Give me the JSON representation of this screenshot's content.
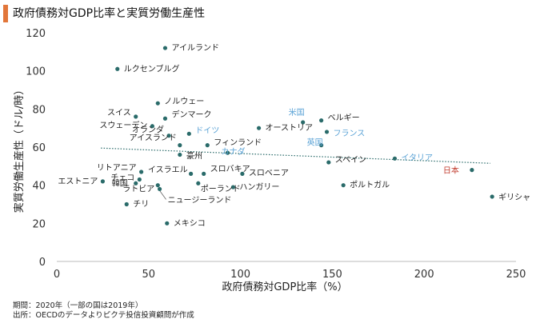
{
  "header": {
    "title": "政府債務対GDP比率と実質労働生産性"
  },
  "chart_data": {
    "type": "scatter",
    "title": "政府債務対GDP比率と実質労働生産性",
    "xlabel": "政府債務対GDP比率（%）",
    "ylabel": "実質労働生産性（ドル/時）",
    "xlim": [
      0,
      250
    ],
    "ylim": [
      0,
      120
    ],
    "xticks": [
      0,
      50,
      100,
      150,
      200,
      250
    ],
    "yticks": [
      0,
      20,
      40,
      60,
      80,
      100,
      120
    ],
    "grid": false,
    "trendline": {
      "style": "dotted",
      "points": [
        [
          24,
          59.5
        ],
        [
          236,
          51.5
        ]
      ]
    },
    "colors": {
      "point": "#2a6b6a",
      "label_default": "#222222",
      "label_highlight": "#5ba3d6",
      "label_japan": "#c0392b",
      "trend": "#2a6b6a"
    },
    "points": [
      {
        "label": "アイルランド",
        "x": 59,
        "y": 112,
        "color": "default"
      },
      {
        "label": "ルクセンブルグ",
        "x": 33,
        "y": 101,
        "color": "default"
      },
      {
        "label": "ノルウェー",
        "x": 55,
        "y": 83,
        "color": "default"
      },
      {
        "label": "スイス",
        "x": 43,
        "y": 76,
        "color": "default"
      },
      {
        "label": "デンマーク",
        "x": 59,
        "y": 75,
        "color": "default"
      },
      {
        "label": "スウェーデン",
        "x": 52,
        "y": 71,
        "color": "default"
      },
      {
        "label": "オランダ",
        "x": 61,
        "y": 66,
        "color": "default"
      },
      {
        "label": "ドイツ",
        "x": 72,
        "y": 67,
        "color": "highlight"
      },
      {
        "label": "オーストリア",
        "x": 110,
        "y": 70,
        "color": "default"
      },
      {
        "label": "米国",
        "x": 134,
        "y": 73,
        "color": "highlight"
      },
      {
        "label": "ベルギー",
        "x": 144,
        "y": 74,
        "color": "default"
      },
      {
        "label": "フランス",
        "x": 147,
        "y": 68,
        "color": "highlight"
      },
      {
        "label": "英国",
        "x": 144,
        "y": 61,
        "color": "highlight"
      },
      {
        "label": "アイスランド",
        "x": 67,
        "y": 61,
        "color": "default"
      },
      {
        "label": "フィンランド",
        "x": 82,
        "y": 61,
        "color": "default"
      },
      {
        "label": "豪州",
        "x": 67,
        "y": 56,
        "color": "default"
      },
      {
        "label": "カナダ",
        "x": 93,
        "y": 57,
        "color": "highlight"
      },
      {
        "label": "イタリア",
        "x": 184,
        "y": 54,
        "color": "highlight"
      },
      {
        "label": "スペイン",
        "x": 148,
        "y": 52,
        "color": "default"
      },
      {
        "label": "日本",
        "x": 226,
        "y": 48,
        "color": "japan"
      },
      {
        "label": "リトアニア",
        "x": 46,
        "y": 47,
        "color": "default"
      },
      {
        "label": "イスラエル",
        "x": 73,
        "y": 46,
        "color": "default"
      },
      {
        "label": "スロバキア",
        "x": 80,
        "y": 46,
        "color": "default"
      },
      {
        "label": "スロベニア",
        "x": 101,
        "y": 46,
        "color": "default"
      },
      {
        "label": "チェコ",
        "x": 45,
        "y": 43,
        "color": "default"
      },
      {
        "label": "韓国",
        "x": 43,
        "y": 41,
        "color": "default"
      },
      {
        "label": "エストニア",
        "x": 25,
        "y": 42,
        "color": "default"
      },
      {
        "label": "ラトビア",
        "x": 55,
        "y": 40,
        "color": "default"
      },
      {
        "label": "ポーランド",
        "x": 77,
        "y": 41,
        "color": "default"
      },
      {
        "label": "ハンガリー",
        "x": 96,
        "y": 39,
        "color": "default"
      },
      {
        "label": "ポルトガル",
        "x": 156,
        "y": 40,
        "color": "default"
      },
      {
        "label": "ギリシャ",
        "x": 237,
        "y": 34,
        "color": "default"
      },
      {
        "label": "チリ",
        "x": 38,
        "y": 30,
        "color": "default"
      },
      {
        "label": "ニュージーランド",
        "x": 56,
        "y": 38,
        "color": "default"
      },
      {
        "label": "メキシコ",
        "x": 60,
        "y": 20,
        "color": "default"
      }
    ]
  },
  "notes": {
    "period": "期間：2020年（一部の国は2019年）",
    "source": "出所：OECDのデータよりピクテ投信投資顧問が作成"
  }
}
